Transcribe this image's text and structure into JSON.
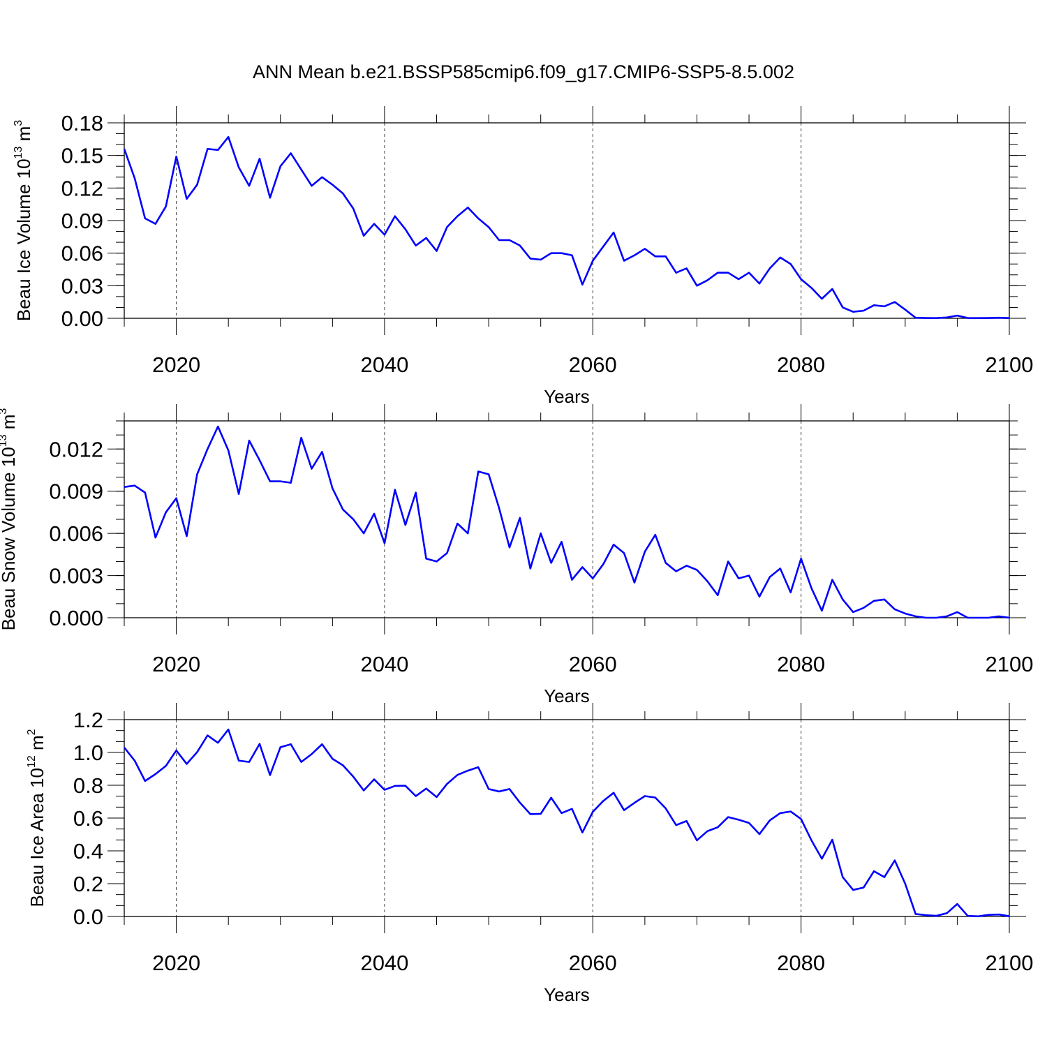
{
  "figure_title": "ANN Mean b.e21.BSSP585cmip6.f09_g17.CMIP6-SSP5-8.5.002",
  "chart_data": [
    {
      "type": "line",
      "xlabel": "Years",
      "ylabel": "Beau Ice Volume 10",
      "ylabel_exp": "13",
      "ylabel_unit": " m",
      "ylabel_unit_exp": "3",
      "xlim": [
        2015,
        2100
      ],
      "ylim": [
        0,
        0.18
      ],
      "xticks": [
        2020,
        2040,
        2060,
        2080,
        2100
      ],
      "xtick_labels": [
        "2020",
        "2040",
        "2060",
        "2080",
        "2100"
      ],
      "yticks": [
        0,
        0.03,
        0.06,
        0.09,
        0.12,
        0.15,
        0.18
      ],
      "ytick_labels": [
        "0.00",
        "0.03",
        "0.06",
        "0.09",
        "0.12",
        "0.15",
        "0.18"
      ],
      "grid": "vertical dashed at major x ticks",
      "line_color": "#0000ff",
      "x_start": 2015,
      "values": [
        0.156,
        0.129,
        0.092,
        0.087,
        0.103,
        0.149,
        0.11,
        0.123,
        0.156,
        0.155,
        0.167,
        0.139,
        0.122,
        0.147,
        0.111,
        0.14,
        0.152,
        0.137,
        0.122,
        0.13,
        0.123,
        0.115,
        0.101,
        0.076,
        0.087,
        0.077,
        0.094,
        0.082,
        0.067,
        0.074,
        0.062,
        0.084,
        0.094,
        0.102,
        0.092,
        0.084,
        0.072,
        0.072,
        0.067,
        0.055,
        0.054,
        0.06,
        0.06,
        0.058,
        0.031,
        0.053,
        0.066,
        0.079,
        0.053,
        0.058,
        0.064,
        0.057,
        0.057,
        0.042,
        0.046,
        0.03,
        0.035,
        0.042,
        0.042,
        0.036,
        0.042,
        0.032,
        0.046,
        0.056,
        0.05,
        0.036,
        0.028,
        0.018,
        0.027,
        0.01,
        0.006,
        0.007,
        0.012,
        0.011,
        0.015,
        0.008,
        0.0005,
        0.0003,
        0.0002,
        0.0008,
        0.0025,
        0.0003,
        0.0002,
        0.0003,
        0.0005,
        0.0002
      ]
    },
    {
      "type": "line",
      "xlabel": "Years",
      "ylabel": "Beau Snow Volume 10",
      "ylabel_exp": "13",
      "ylabel_unit": " m",
      "ylabel_unit_exp": "3",
      "xlim": [
        2015,
        2100
      ],
      "ylim": [
        0,
        0.014
      ],
      "xticks": [
        2020,
        2040,
        2060,
        2080,
        2100
      ],
      "xtick_labels": [
        "2020",
        "2040",
        "2060",
        "2080",
        "2100"
      ],
      "yticks": [
        0,
        0.003,
        0.006,
        0.009,
        0.012
      ],
      "ytick_labels": [
        "0.000",
        "0.003",
        "0.006",
        "0.009",
        "0.012"
      ],
      "grid": "vertical dashed at major x ticks",
      "line_color": "#0000ff",
      "x_start": 2015,
      "values": [
        0.0093,
        0.0094,
        0.0089,
        0.0057,
        0.0075,
        0.0085,
        0.0058,
        0.0102,
        0.012,
        0.0136,
        0.0119,
        0.0088,
        0.0126,
        0.0112,
        0.0097,
        0.0097,
        0.0096,
        0.0128,
        0.0106,
        0.0118,
        0.0092,
        0.0077,
        0.007,
        0.006,
        0.0074,
        0.0053,
        0.0091,
        0.0066,
        0.0089,
        0.0042,
        0.004,
        0.0046,
        0.0067,
        0.006,
        0.0104,
        0.0102,
        0.0078,
        0.005,
        0.0071,
        0.0035,
        0.006,
        0.0039,
        0.0054,
        0.0027,
        0.0036,
        0.0028,
        0.0038,
        0.0052,
        0.0046,
        0.0025,
        0.0047,
        0.0059,
        0.0039,
        0.0033,
        0.0037,
        0.0034,
        0.0026,
        0.0016,
        0.004,
        0.0028,
        0.003,
        0.0015,
        0.0029,
        0.0035,
        0.0018,
        0.0042,
        0.0021,
        0.0005,
        0.0027,
        0.0013,
        0.0004,
        0.0007,
        0.0012,
        0.0013,
        0.0006,
        0.0003,
        0.0001,
        0.0,
        0.0,
        0.0001,
        0.0004,
        0.0,
        0.0,
        0.0,
        0.0001,
        0.0
      ]
    },
    {
      "type": "line",
      "xlabel": "Years",
      "ylabel": "Beau Ice Area 10",
      "ylabel_exp": "12",
      "ylabel_unit": " m",
      "ylabel_unit_exp": "2",
      "xlim": [
        2015,
        2100
      ],
      "ylim": [
        0,
        1.2
      ],
      "xticks": [
        2020,
        2040,
        2060,
        2080,
        2100
      ],
      "xtick_labels": [
        "2020",
        "2040",
        "2060",
        "2080",
        "2100"
      ],
      "yticks": [
        0,
        0.2,
        0.4,
        0.6,
        0.8,
        1.0,
        1.2
      ],
      "ytick_labels": [
        "0.0",
        "0.2",
        "0.4",
        "0.6",
        "0.8",
        "1.0",
        "1.2"
      ],
      "grid": "vertical dashed at major x ticks",
      "line_color": "#0000ff",
      "x_start": 2015,
      "values": [
        1.03,
        0.95,
        0.826,
        0.868,
        0.918,
        1.012,
        0.93,
        1.002,
        1.104,
        1.059,
        1.14,
        0.95,
        0.942,
        1.052,
        0.862,
        1.032,
        1.05,
        0.942,
        0.99,
        1.05,
        0.961,
        0.922,
        0.852,
        0.768,
        0.836,
        0.772,
        0.796,
        0.797,
        0.734,
        0.78,
        0.728,
        0.808,
        0.863,
        0.889,
        0.91,
        0.777,
        0.762,
        0.777,
        0.694,
        0.624,
        0.626,
        0.724,
        0.63,
        0.656,
        0.512,
        0.638,
        0.704,
        0.754,
        0.648,
        0.693,
        0.734,
        0.725,
        0.659,
        0.557,
        0.582,
        0.464,
        0.52,
        0.544,
        0.606,
        0.59,
        0.57,
        0.502,
        0.586,
        0.63,
        0.64,
        0.594,
        0.464,
        0.352,
        0.468,
        0.24,
        0.162,
        0.176,
        0.276,
        0.24,
        0.342,
        0.2,
        0.015,
        0.008,
        0.004,
        0.02,
        0.076,
        0.004,
        0.001,
        0.01,
        0.012,
        0.002
      ]
    }
  ]
}
